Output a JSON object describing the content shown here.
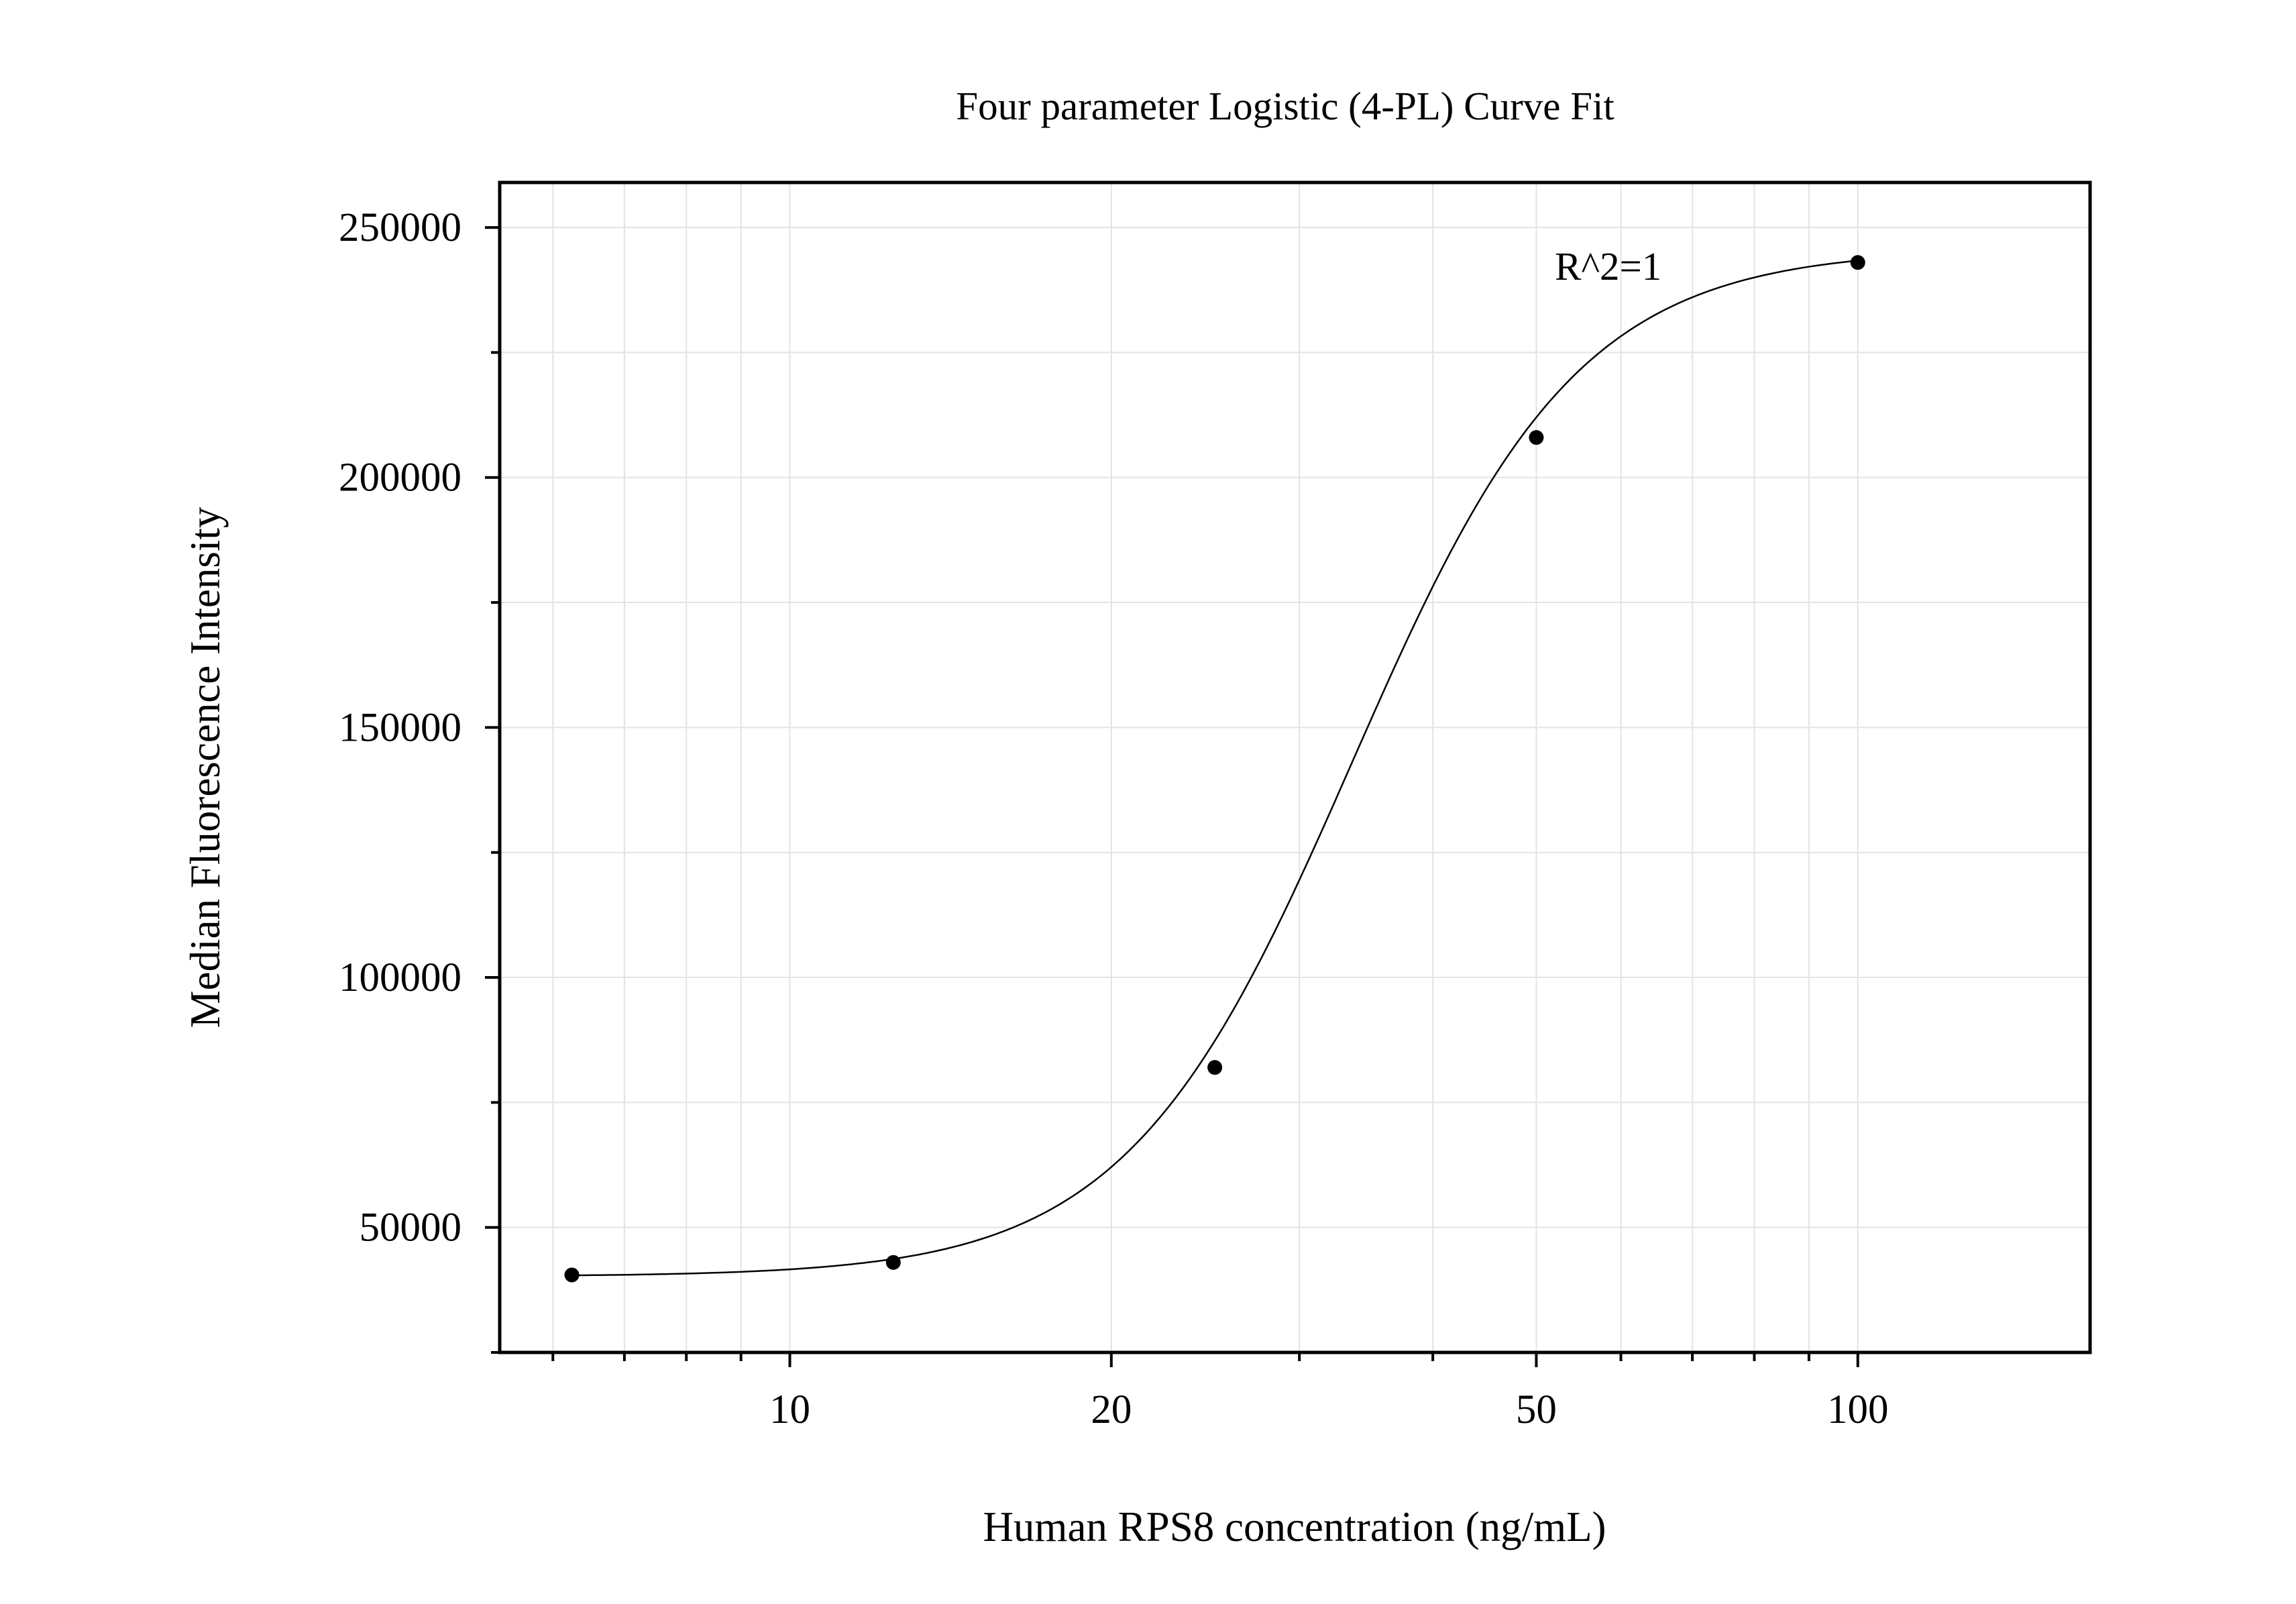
{
  "chart_data": {
    "type": "scatter",
    "title": "Four parameter Logistic (4-PL) Curve Fit",
    "xlabel": "Human RPS8 concentration (ng/mL)",
    "ylabel": "Median Fluorescence Intensity",
    "x_scale": "log",
    "xlim": [
      5.35,
      165
    ],
    "ylim": [
      25000,
      259000
    ],
    "x_ticks": [
      10,
      20,
      50,
      100
    ],
    "x_tick_labels": [
      "10",
      "20",
      "50",
      "100"
    ],
    "x_minor_ticks": [
      6,
      7,
      8,
      9,
      30,
      40,
      60,
      70,
      80,
      90
    ],
    "y_ticks": [
      50000,
      100000,
      150000,
      200000,
      250000
    ],
    "y_tick_labels": [
      "50000",
      "100000",
      "150000",
      "200000",
      "250000"
    ],
    "y_minor_ticks": [
      25000,
      75000,
      125000,
      175000,
      225000
    ],
    "grid": true,
    "annotation": "R^2=1",
    "series": [
      {
        "points": [
          {
            "x": 6.25,
            "y": 40500
          },
          {
            "x": 12.5,
            "y": 43000
          },
          {
            "x": 25,
            "y": 82000
          },
          {
            "x": 50,
            "y": 208000
          },
          {
            "x": 100,
            "y": 243000
          }
        ]
      }
    ],
    "fit": {
      "model": "4PL",
      "bottom": 40200,
      "top": 245700,
      "ec50": 33.6,
      "hill": 4.1
    },
    "colors": {
      "marker": "#000000",
      "curve": "#000000",
      "grid": "#e3e3e3",
      "axis": "#000000"
    }
  }
}
